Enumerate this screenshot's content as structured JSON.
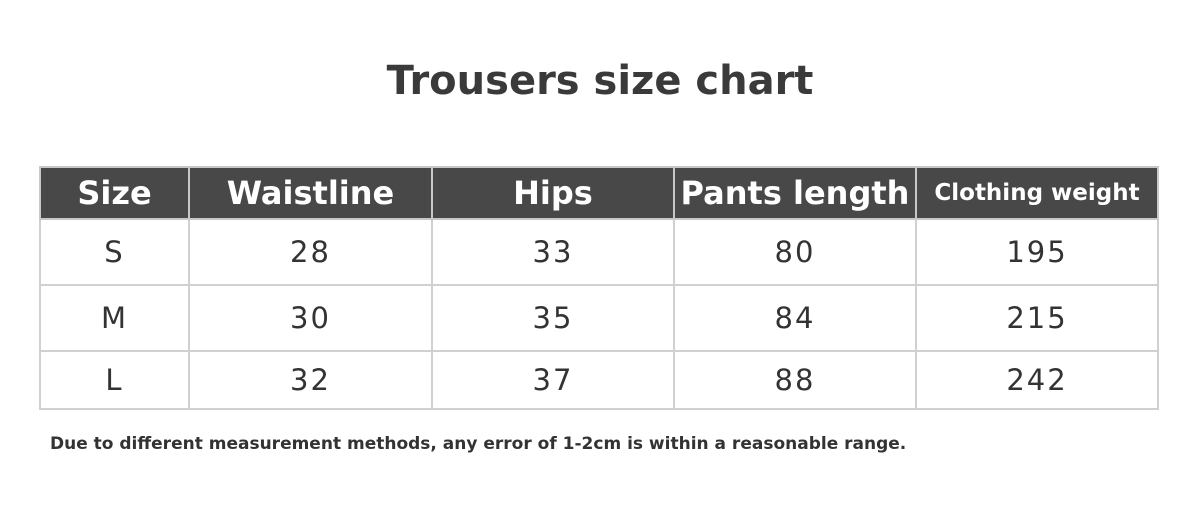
{
  "title": "Trousers size chart",
  "headers": [
    "Size",
    "Waistline",
    "Hips",
    "Pants length",
    "Clothing weight"
  ],
  "rows": [
    [
      "S",
      "28",
      "33",
      "80",
      "195"
    ],
    [
      "M",
      "30",
      "35",
      "84",
      "215"
    ],
    [
      "L",
      "32",
      "37",
      "88",
      "242"
    ]
  ],
  "note": "Due to different measurement methods, any error of 1-2cm is within a reasonable range.",
  "colors": {
    "header_bg": "#484848",
    "border": "#d0d0d0"
  }
}
